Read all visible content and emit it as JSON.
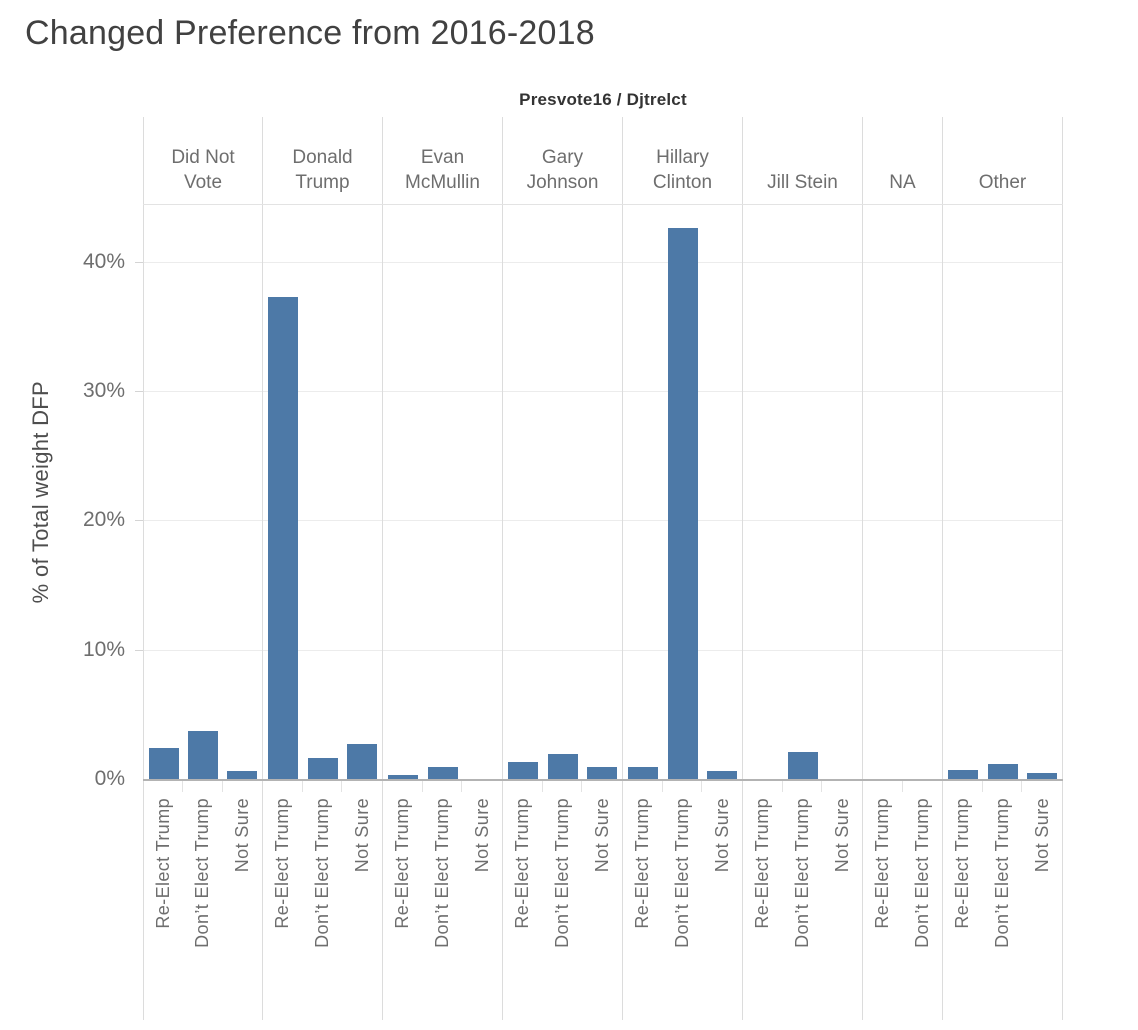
{
  "page_title": "Changed Preference from 2016-2018",
  "field_header": "Presvote16 / Djtrelct",
  "colors": {
    "bar": "#4d79a7",
    "title_text": "#414141",
    "label_text": "#6e6e6e",
    "grid_line": "#ececec",
    "panel_divider": "#dcdcdc",
    "axis_line": "#b3b3b3"
  },
  "chart_data": {
    "type": "bar",
    "title": "Changed Preference from 2016-2018",
    "column_field_label": "Presvote16 / Djtrelct",
    "ylabel": "% of Total weight DFP",
    "ylim": [
      0,
      44.4
    ],
    "yticks": [
      0,
      10,
      20,
      30,
      40
    ],
    "ytick_labels": [
      "0%",
      "10%",
      "20%",
      "30%",
      "40%"
    ],
    "grid": true,
    "legend": "none",
    "groups": [
      {
        "label": "Did Not Vote",
        "label_lines": [
          "Did Not",
          "Vote"
        ],
        "categories": [
          "Re-Elect Trump",
          "Don’t Elect Trump",
          "Not Sure"
        ],
        "values": [
          2.4,
          3.7,
          0.6
        ]
      },
      {
        "label": "Donald Trump",
        "label_lines": [
          "Donald",
          "Trump"
        ],
        "categories": [
          "Re-Elect Trump",
          "Don’t Elect Trump",
          "Not Sure"
        ],
        "values": [
          37.3,
          1.6,
          2.7
        ]
      },
      {
        "label": "Evan McMullin",
        "label_lines": [
          "Evan",
          "McMullin"
        ],
        "categories": [
          "Re-Elect Trump",
          "Don’t Elect Trump",
          "Not Sure"
        ],
        "values": [
          0.3,
          0.9,
          0
        ]
      },
      {
        "label": "Gary Johnson",
        "label_lines": [
          "Gary",
          "Johnson"
        ],
        "categories": [
          "Re-Elect Trump",
          "Don’t Elect Trump",
          "Not Sure"
        ],
        "values": [
          1.3,
          1.9,
          0.9
        ]
      },
      {
        "label": "Hillary Clinton",
        "label_lines": [
          "Hillary",
          "Clinton"
        ],
        "categories": [
          "Re-Elect Trump",
          "Don’t Elect Trump",
          "Not Sure"
        ],
        "values": [
          0.9,
          42.6,
          0.6
        ]
      },
      {
        "label": "Jill Stein",
        "label_lines": [
          "Jill Stein"
        ],
        "categories": [
          "Re-Elect Trump",
          "Don’t Elect Trump",
          "Not Sure"
        ],
        "values": [
          0,
          2.1,
          0
        ]
      },
      {
        "label": "NA",
        "label_lines": [
          "NA"
        ],
        "categories": [
          "Re-Elect Trump",
          "Don’t Elect Trump"
        ],
        "values": [
          0,
          0
        ]
      },
      {
        "label": "Other",
        "label_lines": [
          "Other"
        ],
        "categories": [
          "Re-Elect Trump",
          "Don’t Elect Trump",
          "Not Sure"
        ],
        "values": [
          0.7,
          1.2,
          0.5
        ]
      }
    ]
  }
}
